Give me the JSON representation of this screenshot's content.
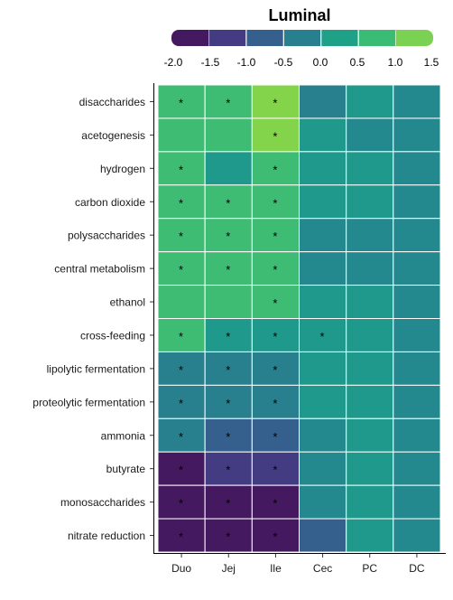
{
  "chart_data": {
    "type": "heatmap",
    "title": "Luminal",
    "legend": {
      "placement": "top",
      "ticks": [
        "-2.0",
        "-1.5",
        "-1.0",
        "-0.5",
        "0.0",
        "0.5",
        "1.0",
        "1.5"
      ],
      "colors": [
        "#45195f",
        "#443c82",
        "#355f8d",
        "#28808e",
        "#1fa188",
        "#3bbc75",
        "#7bd151"
      ]
    },
    "columns": [
      "Duo",
      "Jej",
      "Ile",
      "Cec",
      "PC",
      "DC"
    ],
    "rows": [
      "disaccharides",
      "acetogenesis",
      "hydrogen",
      "carbon dioxide",
      "polysaccharides",
      "central metabolism",
      "ethanol",
      "cross-feeding",
      "lipolytic fermentation",
      "proteolytic fermentation",
      "ammonia",
      "butyrate",
      "monosaccharides",
      "nitrate reduction"
    ],
    "values": [
      [
        1.0,
        1.0,
        1.5,
        -0.5,
        0.25,
        -0.25
      ],
      [
        1.0,
        1.0,
        1.5,
        0.25,
        -0.25,
        -0.25
      ],
      [
        1.0,
        0.25,
        1.0,
        0.25,
        0.25,
        -0.25
      ],
      [
        1.0,
        1.0,
        1.0,
        0.25,
        0.25,
        -0.25
      ],
      [
        1.0,
        1.0,
        1.0,
        -0.25,
        -0.25,
        -0.25
      ],
      [
        1.0,
        1.0,
        1.0,
        -0.25,
        -0.25,
        -0.25
      ],
      [
        1.0,
        1.0,
        1.0,
        0.25,
        0.25,
        -0.25
      ],
      [
        1.0,
        0.25,
        0.25,
        0.25,
        0.25,
        -0.25
      ],
      [
        -0.5,
        -0.5,
        -0.5,
        0.25,
        0.25,
        -0.25
      ],
      [
        -0.5,
        -0.5,
        -0.5,
        0.25,
        0.25,
        -0.25
      ],
      [
        -0.5,
        -1.0,
        -1.0,
        -0.25,
        0.25,
        -0.25
      ],
      [
        -2.0,
        -1.5,
        -1.5,
        -0.25,
        0.25,
        -0.25
      ],
      [
        -2.0,
        -2.0,
        -2.0,
        -0.25,
        0.25,
        -0.25
      ],
      [
        -2.0,
        -2.0,
        -2.0,
        -1.0,
        0.25,
        -0.25
      ]
    ],
    "significant_marker": "*",
    "significant": [
      [
        true,
        true,
        true,
        false,
        false,
        false
      ],
      [
        false,
        false,
        true,
        false,
        false,
        false
      ],
      [
        true,
        false,
        true,
        false,
        false,
        false
      ],
      [
        true,
        true,
        true,
        false,
        false,
        false
      ],
      [
        true,
        true,
        true,
        false,
        false,
        false
      ],
      [
        true,
        true,
        true,
        false,
        false,
        false
      ],
      [
        false,
        false,
        true,
        false,
        false,
        false
      ],
      [
        true,
        true,
        true,
        true,
        false,
        false
      ],
      [
        true,
        true,
        true,
        false,
        false,
        false
      ],
      [
        true,
        true,
        true,
        false,
        false,
        false
      ],
      [
        true,
        true,
        true,
        false,
        false,
        false
      ],
      [
        true,
        true,
        true,
        false,
        false,
        false
      ],
      [
        true,
        true,
        true,
        false,
        false,
        false
      ],
      [
        true,
        true,
        true,
        false,
        false,
        false
      ]
    ],
    "colorscale": {
      "min": -2.0,
      "max": 1.5,
      "stops": [
        [
          -2.0,
          "#45195f"
        ],
        [
          -1.5,
          "#443c82"
        ],
        [
          -1.0,
          "#355f8d"
        ],
        [
          -0.5,
          "#28808e"
        ],
        [
          0.0,
          "#1f918d"
        ],
        [
          0.5,
          "#1fa188"
        ],
        [
          1.0,
          "#3fbc73"
        ],
        [
          1.5,
          "#84d44b"
        ]
      ]
    }
  }
}
